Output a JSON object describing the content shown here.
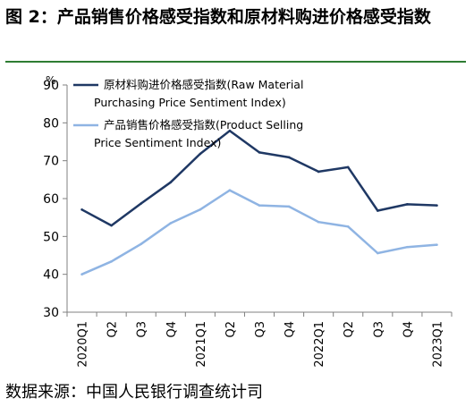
{
  "figure": {
    "title": "图 2：产品销售价格感受指数和原材料购进价格感受指数",
    "source": "数据来源：中国人民银行调查统计司"
  },
  "chart_data": {
    "type": "line",
    "categories": [
      "2020Q1",
      "Q2",
      "Q3",
      "Q4",
      "2021Q1",
      "Q2",
      "Q3",
      "Q4",
      "2022Q1",
      "Q2",
      "Q3",
      "Q4",
      "2023Q1"
    ],
    "y_unit_label": "%",
    "ylim": [
      30,
      90
    ],
    "yticks": [
      30,
      40,
      50,
      60,
      70,
      80,
      90
    ],
    "grid": false,
    "legend_position": "top",
    "series": [
      {
        "name_line1": "原材料购进价格感受指数(Raw  Material",
        "name_line2": "Purchasing Price Sentiment Index)",
        "color": "#1f3864",
        "values": [
          57.1,
          52.9,
          58.7,
          64.3,
          71.8,
          77.9,
          72.2,
          70.9,
          67.1,
          68.3,
          56.8,
          58.5,
          58.2
        ]
      },
      {
        "name_line1": "产品销售价格感受指数(Product Selling",
        "name_line2": "Price Sentiment Index)",
        "color": "#8fb4e3",
        "values": [
          40.0,
          43.4,
          48.0,
          53.5,
          57.1,
          62.2,
          58.2,
          57.9,
          53.8,
          52.6,
          45.6,
          47.2,
          47.8
        ]
      }
    ]
  }
}
